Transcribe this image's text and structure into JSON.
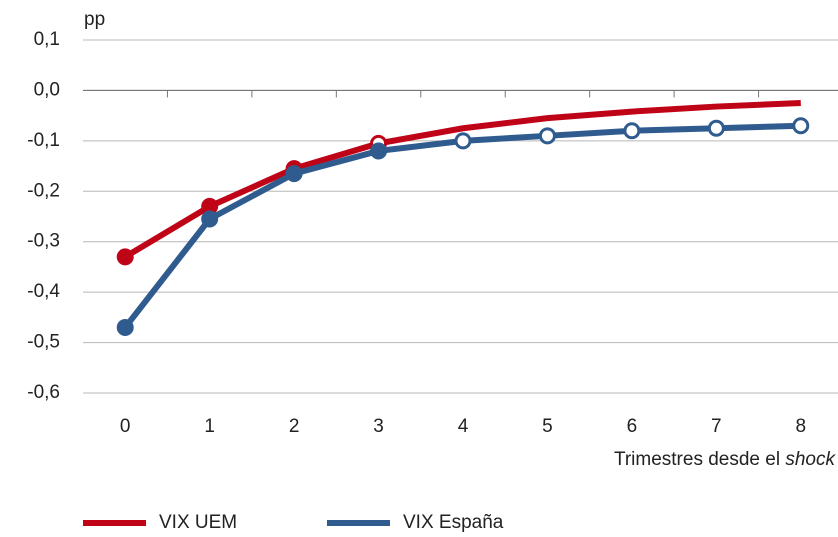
{
  "chart_data": {
    "type": "line",
    "y_unit": "pp",
    "x_label": [
      "Trimestres desde el",
      "shock"
    ],
    "categories": [
      "0",
      "1",
      "2",
      "3",
      "4",
      "5",
      "6",
      "7",
      "8"
    ],
    "series": [
      {
        "name": "VIX UEM",
        "color": "#c00418",
        "values": [
          -0.33,
          -0.23,
          -0.155,
          -0.105,
          -0.075,
          -0.055,
          -0.042,
          -0.032,
          -0.025
        ],
        "markers": [
          "filled",
          "filled",
          "filled",
          "hollow",
          "none",
          "none",
          "none",
          "none",
          "none"
        ]
      },
      {
        "name": "VIX España",
        "color": "#2f5b8f",
        "values": [
          -0.47,
          -0.255,
          -0.165,
          -0.12,
          -0.1,
          -0.09,
          -0.08,
          -0.075,
          -0.07
        ],
        "markers": [
          "filled",
          "filled",
          "filled",
          "filled",
          "hollow",
          "hollow",
          "hollow",
          "hollow",
          "hollow"
        ]
      }
    ],
    "ylim": [
      -0.6,
      0.1
    ],
    "yticks": [
      {
        "value": -0.6,
        "label": "-0,6"
      },
      {
        "value": -0.5,
        "label": "-0,5"
      },
      {
        "value": -0.4,
        "label": "-0,4"
      },
      {
        "value": -0.3,
        "label": "-0,3"
      },
      {
        "value": -0.2,
        "label": "-0,2"
      },
      {
        "value": -0.1,
        "label": "-0,1"
      },
      {
        "value": 0,
        "label": "0,0"
      },
      {
        "value": 0.1,
        "label": "0,1"
      }
    ],
    "grid": true
  }
}
